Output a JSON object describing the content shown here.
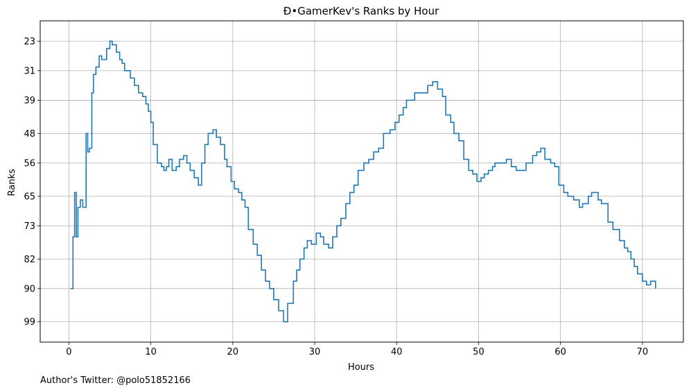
{
  "chart_data": {
    "type": "line",
    "drawstyle": "steps",
    "title": "Ð•GamerKev's Ranks by Hour",
    "xlabel": "Hours",
    "ylabel": "Ranks",
    "footer": "Author's Twitter: @polo51852166",
    "xlim": [
      -3.5,
      75
    ],
    "ylim": [
      104.5,
      17.5
    ],
    "y_inverted": true,
    "xticks": [
      0,
      10,
      20,
      30,
      40,
      50,
      60,
      70
    ],
    "xtick_labels": [
      "0",
      "10",
      "20",
      "30",
      "40",
      "50",
      "60",
      "70"
    ],
    "yticks": [
      23,
      31,
      39,
      48,
      56,
      65,
      73,
      82,
      90,
      99
    ],
    "ytick_labels": [
      "23",
      "31",
      "39",
      "48",
      "56",
      "65",
      "73",
      "82",
      "90",
      "99"
    ],
    "grid": true,
    "line_color": "#1f77b4",
    "series": [
      {
        "x": [
          0.2,
          0.5,
          0.7,
          0.9,
          1.1,
          1.4,
          1.7,
          2.1,
          2.3,
          2.5,
          2.8,
          3.0,
          3.3,
          3.7,
          4.0,
          4.6,
          5.0,
          5.3,
          5.8,
          6.2,
          6.5,
          6.8,
          7.5,
          8.0,
          8.5,
          9.0,
          9.4,
          9.7,
          10.0,
          10.3,
          10.8,
          11.3,
          11.6,
          11.9,
          12.2,
          12.6,
          13.1,
          13.5,
          14.0,
          14.4,
          14.8,
          15.3,
          15.8,
          16.2,
          16.6,
          17.0,
          17.6,
          18.0,
          18.5,
          19.0,
          19.3,
          19.8,
          20.2,
          20.7,
          21.1,
          21.5,
          21.9,
          22.5,
          23.0,
          23.5,
          24.0,
          24.5,
          25.0,
          25.6,
          26.2,
          26.7,
          27.4,
          27.8,
          28.2,
          28.7,
          29.1,
          29.6,
          30.2,
          30.7,
          31.1,
          31.7,
          32.2,
          32.7,
          33.2,
          33.8,
          34.3,
          34.8,
          35.3,
          36.0,
          36.6,
          37.2,
          37.8,
          38.4,
          39.2,
          39.8,
          40.3,
          40.8,
          41.2,
          42.2,
          43.8,
          44.4,
          45.0,
          45.6,
          46.0,
          46.6,
          47.0,
          47.6,
          48.2,
          48.8,
          49.3,
          49.8,
          50.3,
          50.7,
          51.2,
          51.7,
          52.0,
          53.4,
          54.0,
          54.6,
          55.8,
          56.6,
          57.1,
          57.6,
          58.1,
          58.8,
          59.3,
          59.8,
          60.4,
          60.9,
          61.6,
          62.3,
          62.7,
          63.4,
          63.8,
          64.2,
          64.6,
          65.0,
          65.8,
          66.4,
          67.2,
          67.8,
          68.2,
          68.6,
          69.0,
          69.4,
          70.0,
          70.5,
          71.0,
          71.3,
          71.6
        ],
        "y": [
          90,
          76,
          64,
          76,
          68,
          66,
          68,
          48,
          53,
          52,
          37,
          32,
          30,
          27,
          28,
          25,
          23,
          24,
          26,
          28,
          29,
          31,
          33,
          35,
          37,
          38,
          40,
          42,
          45,
          51,
          56,
          57,
          58,
          57,
          55,
          58,
          57,
          55,
          54,
          56,
          58,
          60,
          62,
          56,
          51,
          48,
          47,
          49,
          51,
          55,
          57,
          61,
          63,
          64,
          66,
          68,
          74,
          78,
          81,
          85,
          88,
          90,
          93,
          96,
          99,
          94,
          88,
          85,
          82,
          79,
          77,
          78,
          75,
          76,
          78,
          79,
          76,
          73,
          71,
          67,
          64,
          62,
          58,
          56,
          55,
          53,
          52,
          48,
          47,
          45,
          43,
          41,
          39,
          37,
          35,
          34,
          36,
          38,
          43,
          45,
          48,
          50,
          55,
          58,
          59,
          61,
          60,
          59,
          58,
          57,
          56,
          55,
          57,
          58,
          56,
          54,
          53,
          52,
          55,
          56,
          57,
          62,
          64,
          65,
          66,
          68,
          67,
          65,
          64,
          64,
          66,
          67,
          72,
          74,
          77,
          79,
          80,
          82,
          84,
          86,
          88,
          89,
          88,
          88,
          90
        ]
      }
    ]
  }
}
